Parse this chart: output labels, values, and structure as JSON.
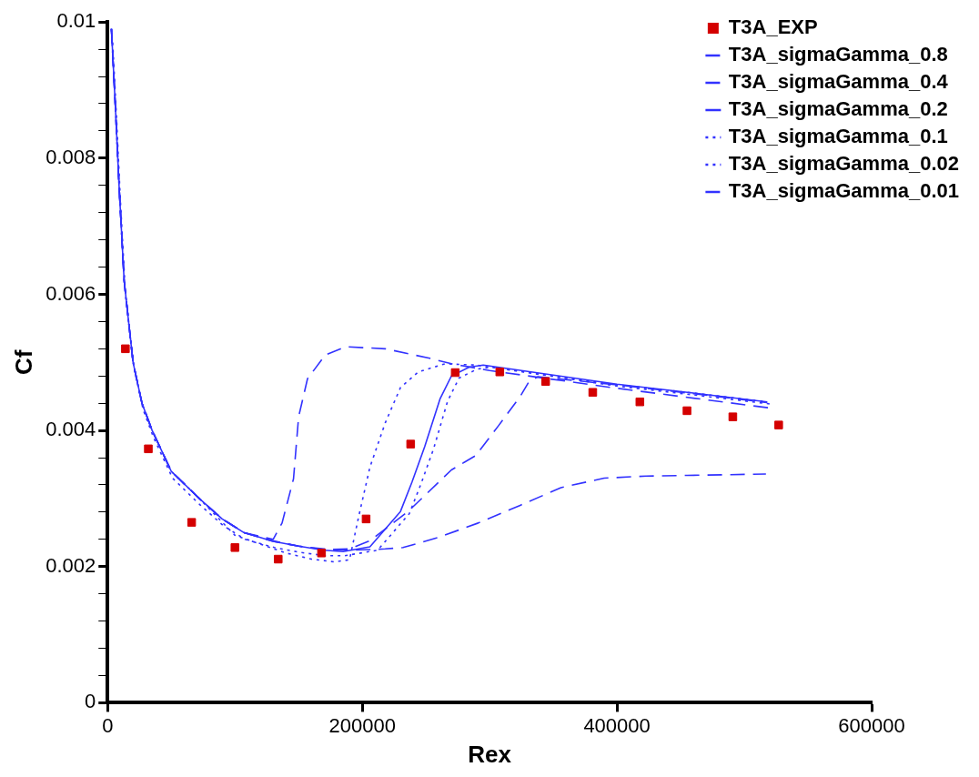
{
  "chart_data": {
    "type": "line",
    "xlabel": "Rex",
    "ylabel": "Cf",
    "xlim": [
      0,
      600000
    ],
    "xticks": [
      0,
      200000,
      400000,
      600000
    ],
    "ylim": [
      0,
      0.01
    ],
    "yticks": [
      0,
      {
        "value": 0.0004,
        "label": null
      },
      {
        "value": 0.0008,
        "label": null
      },
      {
        "value": 0.0012,
        "label": null
      },
      {
        "value": 0.0016,
        "label": null
      },
      0.002,
      {
        "value": 0.0024,
        "label": null
      },
      {
        "value": 0.0028,
        "label": null
      },
      {
        "value": 0.0032,
        "label": null
      },
      {
        "value": 0.0036,
        "label": null
      },
      0.004,
      {
        "value": 0.0044,
        "label": null
      },
      {
        "value": 0.0048,
        "label": null
      },
      {
        "value": 0.0052,
        "label": null
      },
      {
        "value": 0.0056,
        "label": null
      },
      0.006,
      {
        "value": 0.0064,
        "label": null
      },
      {
        "value": 0.0068,
        "label": null
      },
      {
        "value": 0.0072,
        "label": null
      },
      {
        "value": 0.0076,
        "label": null
      },
      0.008,
      {
        "value": 0.0084,
        "label": null
      },
      {
        "value": 0.0088,
        "label": null
      },
      {
        "value": 0.0092,
        "label": null
      },
      {
        "value": 0.0096,
        "label": null
      },
      0.01
    ],
    "grid": false,
    "legend": "top right",
    "series": [
      {
        "name": "T3A_EXP",
        "type": "scatter",
        "marker": "square",
        "color": "#d40000",
        "x": [
          14000,
          32000,
          66000,
          100000,
          134000,
          168000,
          203000,
          238000,
          273000,
          308000,
          344000,
          381000,
          418000,
          455000,
          491000,
          527000
        ],
        "values": [
          0.0052,
          0.00373,
          0.00265,
          0.00228,
          0.00211,
          0.0022,
          0.0027,
          0.0038,
          0.00485,
          0.00486,
          0.00472,
          0.00456,
          0.00442,
          0.00429,
          0.0042,
          0.00408
        ]
      },
      {
        "name": "T3A_sigmaGamma_0.8",
        "line_style": "dashed",
        "marker": "none",
        "color": "#3232ff",
        "x": [
          3000,
          6000,
          9000,
          13000,
          20000,
          27000,
          35000,
          50000,
          72000,
          90000,
          107000,
          130000,
          150000,
          170000,
          190000,
          218000,
          232000,
          260000,
          291000,
          324000,
          356000,
          390000,
          423000,
          455000,
          517000
        ],
        "values": [
          0.0099,
          0.0088,
          0.0076,
          0.0062,
          0.005,
          0.0044,
          0.004,
          0.0034,
          0.003,
          0.0027,
          0.0025,
          0.00238,
          0.0023,
          0.00226,
          0.00224,
          0.00226,
          0.00228,
          0.00243,
          0.00264,
          0.0029,
          0.00316,
          0.0033,
          0.00333,
          0.00334,
          0.00336
        ]
      },
      {
        "name": "T3A_sigmaGamma_0.4",
        "line_style": "dashed",
        "marker": "none",
        "color": "#3232ff",
        "x": [
          3000,
          6000,
          9000,
          13000,
          20000,
          27000,
          35000,
          50000,
          72000,
          90000,
          107000,
          130000,
          150000,
          170000,
          190000,
          206000,
          236000,
          270000,
          289000,
          307000,
          324000,
          331000,
          338000,
          400000,
          460000,
          518000
        ],
        "values": [
          0.0099,
          0.0088,
          0.0076,
          0.0062,
          0.005,
          0.0044,
          0.004,
          0.0034,
          0.003,
          0.0027,
          0.0025,
          0.00237,
          0.0023,
          0.00225,
          0.00226,
          0.00238,
          0.00281,
          0.00342,
          0.00363,
          0.00407,
          0.0045,
          0.00472,
          0.00479,
          0.00467,
          0.00454,
          0.00441
        ]
      },
      {
        "name": "T3A_sigmaGamma_0.2",
        "line_style": "solid",
        "marker": "none",
        "color": "#3232ff",
        "x": [
          3000,
          6000,
          9000,
          13000,
          20000,
          27000,
          35000,
          50000,
          72000,
          90000,
          107000,
          130000,
          150000,
          170000,
          185000,
          206000,
          230000,
          239000,
          249000,
          261000,
          270000,
          284000,
          295000,
          400000,
          460000,
          518000
        ],
        "values": [
          0.0099,
          0.0088,
          0.0076,
          0.0062,
          0.005,
          0.0044,
          0.004,
          0.0034,
          0.003,
          0.0027,
          0.0025,
          0.00237,
          0.0023,
          0.00224,
          0.00222,
          0.00229,
          0.00281,
          0.00324,
          0.00376,
          0.00446,
          0.0048,
          0.00493,
          0.00496,
          0.00468,
          0.00455,
          0.00442
        ]
      },
      {
        "name": "T3A_sigmaGamma_0.1",
        "line_style": "dotted",
        "marker": "none",
        "color": "#3232ff",
        "x": [
          4000,
          7000,
          10000,
          14000,
          21000,
          28000,
          36000,
          51000,
          73000,
          91000,
          108000,
          131000,
          151000,
          171000,
          186000,
          212000,
          237000,
          246000,
          256000,
          267000,
          276000,
          290000,
          301000,
          401000,
          461000,
          520000
        ],
        "values": [
          0.0097,
          0.0086,
          0.0074,
          0.006,
          0.0049,
          0.0043,
          0.0039,
          0.0033,
          0.0029,
          0.0026,
          0.0024,
          0.00228,
          0.00221,
          0.00216,
          0.00216,
          0.00224,
          0.00278,
          0.00321,
          0.00373,
          0.00443,
          0.00477,
          0.0049,
          0.00493,
          0.00465,
          0.00452,
          0.00439
        ]
      },
      {
        "name": "T3A_sigmaGamma_0.02",
        "line_style": "dotted",
        "marker": "none",
        "color": "#3232ff",
        "x": [
          3000,
          6000,
          9000,
          13000,
          20000,
          27000,
          35000,
          50000,
          72000,
          100000,
          140000,
          160000,
          178000,
          190000,
          197000,
          206000,
          218000,
          230000,
          244000,
          265000,
          290000,
          400000,
          460000,
          518000
        ],
        "values": [
          0.0099,
          0.0088,
          0.0076,
          0.0062,
          0.005,
          0.0044,
          0.004,
          0.0034,
          0.003,
          0.00246,
          0.0022,
          0.00211,
          0.00207,
          0.0021,
          0.00272,
          0.00346,
          0.00411,
          0.00463,
          0.00486,
          0.00498,
          0.00496,
          0.00467,
          0.00455,
          0.00442
        ]
      },
      {
        "name": "T3A_sigmaGamma_0.01",
        "line_style": "dashed",
        "marker": "none",
        "color": "#3232ff",
        "x": [
          3000,
          6000,
          9000,
          13000,
          20000,
          27000,
          35000,
          50000,
          72000,
          90000,
          107000,
          130000,
          137000,
          146000,
          150000,
          157000,
          171000,
          187000,
          218000,
          253000,
          270000,
          300000,
          400000,
          520000
        ],
        "values": [
          0.0099,
          0.0088,
          0.0076,
          0.0062,
          0.005,
          0.0044,
          0.004,
          0.0034,
          0.003,
          0.0027,
          0.0025,
          0.0024,
          0.00264,
          0.00329,
          0.0042,
          0.00476,
          0.00511,
          0.00523,
          0.0052,
          0.00506,
          0.00498,
          0.00488,
          0.00462,
          0.00433
        ]
      }
    ]
  }
}
